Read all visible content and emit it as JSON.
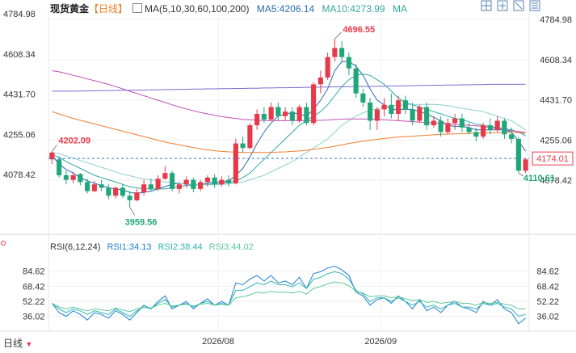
{
  "header": {
    "symbol": "现货黄金",
    "period_tag": "【日线】",
    "ma_label": "MA(5,10,30,60,100,200)",
    "ma5": "MA5:4206.14",
    "ma10": "MA10:4273.99",
    "ma_more": "MA"
  },
  "rsi_header": {
    "label": "RSI(6,12,24)",
    "rsi1": "RSI1:34.13",
    "rsi2": "RSI2:38.44",
    "rsi3": "RSI3:44.02"
  },
  "footer": {
    "period_selector": "日线"
  },
  "toolbar_icons": [
    "grid-icon",
    "crosshair-icon",
    "line-tool-icon",
    "menu-icon"
  ],
  "colors": {
    "up": "#e8394a",
    "down": "#1fa77a",
    "ma5": "#2b6bb3",
    "ma10": "#30a8a0",
    "ma30": "#8fcfd0",
    "ma60": "#f07d2b",
    "ma100": "#c24fb5",
    "ma200": "#7b6bd1",
    "rsi1": "#1f7fd0",
    "rsi2": "#2fb5b5",
    "rsi3": "#5fc89a"
  },
  "chart_data": [
    {
      "type": "candlestick",
      "title": "现货黄金",
      "y_ticks": [
        "4784.98",
        "4608.34",
        "4431.70",
        "4255.06",
        "4078.42"
      ],
      "ylim": [
        3940,
        4800
      ],
      "x_ticks": [
        "2026/08",
        "2026/09"
      ],
      "annotations": {
        "high": "4696.55",
        "low": "3959.56",
        "last_low": "4110.61",
        "ref_price": "4202.09",
        "current_price": "4174.01"
      },
      "candles": [
        [
          4170,
          4200,
          4205,
          4150
        ],
        [
          4170,
          4100,
          4180,
          4090
        ],
        [
          4100,
          4080,
          4120,
          4060
        ],
        [
          4080,
          4100,
          4115,
          4065
        ],
        [
          4105,
          4070,
          4110,
          4055
        ],
        [
          4070,
          4030,
          4085,
          4020
        ],
        [
          4030,
          4060,
          4075,
          4025
        ],
        [
          4060,
          4045,
          4080,
          4030
        ],
        [
          4045,
          4010,
          4060,
          3995
        ],
        [
          4010,
          4045,
          4050,
          4000
        ],
        [
          4045,
          4010,
          4060,
          4000
        ],
        [
          4010,
          3990,
          4030,
          3960
        ],
        [
          3990,
          4025,
          4040,
          3985
        ],
        [
          4025,
          4060,
          4080,
          4010
        ],
        [
          4060,
          4040,
          4085,
          4030
        ],
        [
          4040,
          4085,
          4100,
          4030
        ],
        [
          4085,
          4110,
          4140,
          4080
        ],
        [
          4110,
          4040,
          4120,
          4030
        ],
        [
          4040,
          4060,
          4070,
          4020
        ],
        [
          4060,
          4080,
          4095,
          4045
        ],
        [
          4080,
          4040,
          4090,
          4025
        ],
        [
          4040,
          4070,
          4080,
          4030
        ],
        [
          4070,
          4090,
          4100,
          4050
        ],
        [
          4090,
          4060,
          4105,
          4045
        ],
        [
          4060,
          4080,
          4095,
          4050
        ],
        [
          4080,
          4065,
          4100,
          4050
        ],
        [
          4065,
          4240,
          4260,
          4060
        ],
        [
          4240,
          4220,
          4270,
          4200
        ],
        [
          4220,
          4320,
          4330,
          4215
        ],
        [
          4320,
          4370,
          4390,
          4300
        ],
        [
          4370,
          4345,
          4400,
          4330
        ],
        [
          4345,
          4400,
          4420,
          4340
        ],
        [
          4400,
          4360,
          4420,
          4340
        ],
        [
          4360,
          4380,
          4400,
          4340
        ],
        [
          4380,
          4340,
          4400,
          4320
        ],
        [
          4340,
          4400,
          4410,
          4330
        ],
        [
          4400,
          4330,
          4420,
          4320
        ],
        [
          4330,
          4500,
          4510,
          4320
        ],
        [
          4500,
          4530,
          4560,
          4460
        ],
        [
          4530,
          4620,
          4640,
          4520
        ],
        [
          4620,
          4660,
          4700,
          4600
        ],
        [
          4660,
          4620,
          4690,
          4600
        ],
        [
          4620,
          4570,
          4640,
          4540
        ],
        [
          4570,
          4460,
          4590,
          4440
        ],
        [
          4460,
          4420,
          4480,
          4400
        ],
        [
          4420,
          4340,
          4440,
          4300
        ],
        [
          4340,
          4390,
          4400,
          4300
        ],
        [
          4390,
          4410,
          4440,
          4360
        ],
        [
          4410,
          4370,
          4460,
          4350
        ],
        [
          4370,
          4430,
          4450,
          4340
        ],
        [
          4430,
          4390,
          4450,
          4370
        ],
        [
          4390,
          4340,
          4420,
          4320
        ],
        [
          4340,
          4400,
          4410,
          4330
        ],
        [
          4400,
          4320,
          4420,
          4300
        ],
        [
          4320,
          4340,
          4360,
          4310
        ],
        [
          4340,
          4290,
          4360,
          4270
        ],
        [
          4290,
          4330,
          4350,
          4280
        ],
        [
          4330,
          4350,
          4370,
          4300
        ],
        [
          4350,
          4310,
          4370,
          4290
        ],
        [
          4310,
          4290,
          4330,
          4280
        ],
        [
          4290,
          4270,
          4310,
          4250
        ],
        [
          4270,
          4320,
          4330,
          4260
        ],
        [
          4320,
          4300,
          4350,
          4280
        ],
        [
          4300,
          4340,
          4360,
          4290
        ],
        [
          4340,
          4280,
          4350,
          4260
        ],
        [
          4280,
          4260,
          4310,
          4240
        ],
        [
          4260,
          4120,
          4270,
          4110
        ],
        [
          4120,
          4170,
          4175,
          4110
        ]
      ],
      "series": [
        {
          "name": "MA5",
          "values": [
            4185,
            4150,
            4125,
            4110,
            4090,
            4075,
            4065,
            4055,
            4045,
            4040,
            4035,
            4025,
            4020,
            4025,
            4030,
            4040,
            4050,
            4060,
            4065,
            4060,
            4060,
            4060,
            4065,
            4070,
            4070,
            4075,
            4100,
            4130,
            4180,
            4240,
            4290,
            4330,
            4360,
            4370,
            4375,
            4370,
            4360,
            4390,
            4430,
            4480,
            4560,
            4600,
            4600,
            4580,
            4540,
            4480,
            4430,
            4410,
            4390,
            4390,
            4390,
            4390,
            4380,
            4370,
            4355,
            4340,
            4320,
            4315,
            4315,
            4310,
            4300,
            4300,
            4300,
            4300,
            4300,
            4290,
            4250,
            4206
          ]
        },
        {
          "name": "MA10",
          "values": [
            4190,
            4180,
            4160,
            4145,
            4130,
            4115,
            4100,
            4090,
            4080,
            4070,
            4060,
            4050,
            4045,
            4040,
            4040,
            4040,
            4040,
            4045,
            4050,
            4055,
            4055,
            4060,
            4060,
            4062,
            4065,
            4068,
            4075,
            4090,
            4110,
            4140,
            4170,
            4200,
            4230,
            4260,
            4290,
            4320,
            4340,
            4360,
            4380,
            4410,
            4450,
            4490,
            4520,
            4540,
            4545,
            4540,
            4520,
            4500,
            4470,
            4440,
            4420,
            4410,
            4400,
            4390,
            4380,
            4370,
            4360,
            4350,
            4345,
            4335,
            4325,
            4320,
            4315,
            4310,
            4305,
            4300,
            4290,
            4274
          ]
        },
        {
          "name": "MA30",
          "values": [
            4200,
            4195,
            4185,
            4175,
            4165,
            4155,
            4145,
            4135,
            4125,
            4115,
            4105,
            4098,
            4090,
            4085,
            4080,
            4075,
            4070,
            4068,
            4065,
            4062,
            4060,
            4058,
            4058,
            4058,
            4060,
            4062,
            4065,
            4070,
            4080,
            4090,
            4100,
            4115,
            4130,
            4145,
            4160,
            4180,
            4200,
            4220,
            4240,
            4260,
            4290,
            4320,
            4340,
            4360,
            4375,
            4385,
            4392,
            4400,
            4405,
            4408,
            4410,
            4412,
            4412,
            4412,
            4412,
            4410,
            4406,
            4400,
            4395,
            4390,
            4385,
            4380,
            4370,
            4360,
            4350,
            4340,
            4320,
            4300
          ]
        },
        {
          "name": "MA60",
          "values": [
            4380,
            4370,
            4360,
            4350,
            4342,
            4334,
            4326,
            4318,
            4310,
            4302,
            4294,
            4286,
            4278,
            4270,
            4262,
            4254,
            4246,
            4240,
            4234,
            4228,
            4222,
            4216,
            4212,
            4208,
            4205,
            4203,
            4202,
            4201,
            4200,
            4200,
            4200,
            4201,
            4202,
            4203,
            4205,
            4207,
            4210,
            4214,
            4218,
            4222,
            4228,
            4234,
            4240,
            4245,
            4250,
            4254,
            4258,
            4262,
            4265,
            4268,
            4270,
            4272,
            4274,
            4276,
            4278,
            4280,
            4281,
            4282,
            4283,
            4284,
            4285,
            4286,
            4287,
            4288,
            4289,
            4289,
            4288,
            4285
          ]
        },
        {
          "name": "MA100",
          "values": [
            4560,
            4555,
            4548,
            4540,
            4532,
            4524,
            4516,
            4508,
            4500,
            4490,
            4480,
            4470,
            4460,
            4450,
            4440,
            4430,
            4420,
            4410,
            4400,
            4392,
            4384,
            4376,
            4370,
            4364,
            4358,
            4354,
            4350,
            4346,
            4344,
            4342,
            4341,
            4340,
            4340,
            4340,
            4340,
            4340,
            4340,
            4341,
            4342,
            4343,
            4345,
            4347,
            4348,
            4348,
            4348,
            4347,
            4346,
            4344,
            4342,
            4340,
            4338,
            4336,
            4334,
            4332,
            4330,
            4328,
            4326,
            4324,
            4322,
            4320,
            4318,
            4314,
            4310,
            4305,
            4300,
            4296,
            4292,
            4288
          ]
        },
        {
          "name": "MA200",
          "values": [
            4470,
            4470,
            4470,
            4470,
            4471,
            4471,
            4472,
            4472,
            4473,
            4473,
            4474,
            4474,
            4475,
            4475,
            4476,
            4476,
            4477,
            4477,
            4478,
            4478,
            4479,
            4479,
            4480,
            4480,
            4481,
            4481,
            4482,
            4482,
            4483,
            4483,
            4484,
            4484,
            4485,
            4485,
            4486,
            4486,
            4487,
            4487,
            4488,
            4488,
            4489,
            4489,
            4490,
            4490,
            4491,
            4491,
            4492,
            4492,
            4493,
            4493,
            4494,
            4494,
            4495,
            4495,
            4496,
            4496,
            4497,
            4497,
            4498,
            4498,
            4499,
            4499,
            4500,
            4500,
            4500,
            4500,
            4500,
            4500
          ]
        }
      ]
    },
    {
      "type": "line",
      "title": "RSI(6,12,24)",
      "y_ticks": [
        "84.62",
        "68.42",
        "52.22",
        "36.02"
      ],
      "ylim": [
        20,
        100
      ],
      "series": [
        {
          "name": "RSI1",
          "values": [
            50,
            40,
            36,
            42,
            38,
            32,
            40,
            38,
            34,
            42,
            38,
            32,
            40,
            48,
            44,
            52,
            58,
            44,
            48,
            52,
            44,
            50,
            55,
            48,
            52,
            48,
            72,
            70,
            76,
            80,
            74,
            80,
            72,
            74,
            70,
            78,
            66,
            82,
            84,
            88,
            90,
            86,
            80,
            62,
            58,
            48,
            54,
            56,
            50,
            58,
            52,
            44,
            54,
            42,
            46,
            40,
            48,
            52,
            46,
            44,
            40,
            52,
            48,
            54,
            44,
            40,
            28,
            34
          ]
        },
        {
          "name": "RSI2",
          "values": [
            50,
            44,
            40,
            44,
            42,
            38,
            42,
            40,
            38,
            44,
            40,
            36,
            42,
            46,
            44,
            50,
            54,
            46,
            48,
            50,
            46,
            50,
            52,
            48,
            50,
            48,
            64,
            64,
            68,
            72,
            70,
            74,
            70,
            70,
            68,
            72,
            66,
            76,
            78,
            82,
            84,
            82,
            76,
            64,
            60,
            52,
            56,
            56,
            52,
            56,
            52,
            48,
            52,
            46,
            48,
            44,
            48,
            50,
            46,
            46,
            44,
            50,
            48,
            50,
            46,
            44,
            36,
            38
          ]
        },
        {
          "name": "RSI3",
          "values": [
            50,
            46,
            44,
            46,
            44,
            42,
            44,
            43,
            42,
            45,
            43,
            41,
            44,
            46,
            45,
            48,
            50,
            47,
            48,
            49,
            47,
            49,
            50,
            48,
            49,
            48,
            56,
            57,
            59,
            62,
            61,
            63,
            62,
            62,
            61,
            63,
            60,
            66,
            68,
            71,
            73,
            72,
            69,
            63,
            61,
            57,
            58,
            58,
            56,
            57,
            55,
            53,
            54,
            51,
            52,
            50,
            51,
            52,
            50,
            50,
            48,
            51,
            50,
            51,
            49,
            48,
            44,
            44
          ]
        }
      ]
    }
  ]
}
